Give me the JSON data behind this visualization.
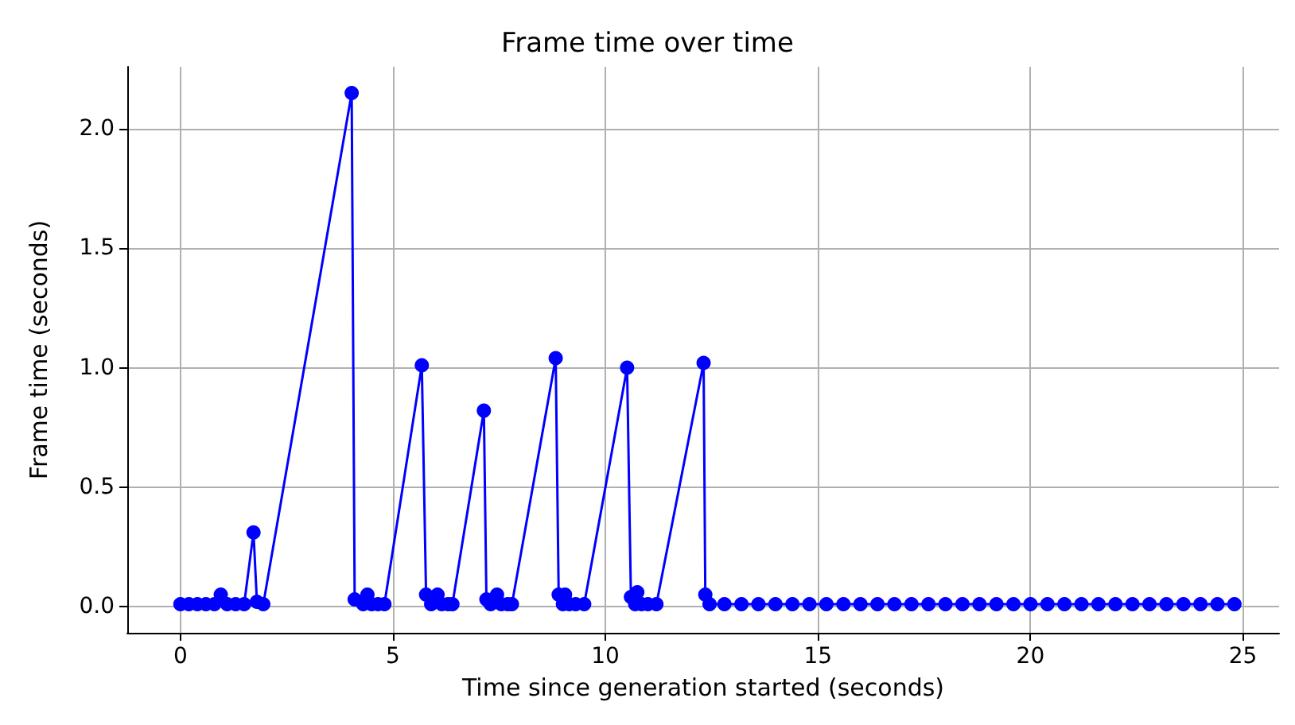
{
  "chart_data": {
    "type": "line",
    "title": "Frame time over time",
    "xlabel": "Time since generation started (seconds)",
    "ylabel": "Frame time (seconds)",
    "x": [
      0,
      0.2,
      0.4,
      0.6,
      0.8,
      0.95,
      1.1,
      1.3,
      1.5,
      1.72,
      1.8,
      1.95,
      4.03,
      4.1,
      4.3,
      4.4,
      4.5,
      4.65,
      4.8,
      5.68,
      5.78,
      5.9,
      6.05,
      6.15,
      6.3,
      6.4,
      7.14,
      7.2,
      7.3,
      7.45,
      7.55,
      7.7,
      7.8,
      8.83,
      8.9,
      9.0,
      9.05,
      9.15,
      9.3,
      9.5,
      10.51,
      10.6,
      10.7,
      10.75,
      10.85,
      11.0,
      11.2,
      12.31,
      12.35,
      12.45,
      12.8,
      13.2,
      13.6,
      14.0,
      14.4,
      14.8,
      15.2,
      15.6,
      16.0,
      16.4,
      16.8,
      17.2,
      17.6,
      18.0,
      18.4,
      18.8,
      19.2,
      19.6,
      20.0,
      20.4,
      20.8,
      21.2,
      21.6,
      22.0,
      22.4,
      22.8,
      23.2,
      23.6,
      24.0,
      24.4,
      24.8
    ],
    "series": [
      {
        "color": "#0000ff",
        "values": [
          0.01,
          0.01,
          0.01,
          0.01,
          0.01,
          0.05,
          0.01,
          0.01,
          0.01,
          0.31,
          0.02,
          0.01,
          2.15,
          0.03,
          0.01,
          0.05,
          0.01,
          0.01,
          0.01,
          1.01,
          0.05,
          0.01,
          0.05,
          0.01,
          0.01,
          0.01,
          0.82,
          0.03,
          0.01,
          0.05,
          0.01,
          0.01,
          0.01,
          1.04,
          0.05,
          0.01,
          0.05,
          0.01,
          0.01,
          0.01,
          1.0,
          0.04,
          0.01,
          0.06,
          0.01,
          0.01,
          0.01,
          1.02,
          0.05,
          0.01,
          0.01,
          0.01,
          0.01,
          0.01,
          0.01,
          0.01,
          0.01,
          0.01,
          0.01,
          0.01,
          0.01,
          0.01,
          0.01,
          0.01,
          0.01,
          0.01,
          0.01,
          0.01,
          0.01,
          0.01,
          0.01,
          0.01,
          0.01,
          0.01,
          0.01,
          0.01,
          0.01,
          0.01,
          0.01,
          0.01,
          0.01
        ]
      }
    ],
    "xlim": [
      -1.25,
      25.85
    ],
    "xticks": [
      0,
      5,
      10,
      15,
      20,
      25
    ],
    "ylim": [
      -0.11,
      2.26
    ],
    "yticks": [
      {
        "value": 0,
        "label": "0.0"
      },
      {
        "value": 0.5,
        "label": "0.5"
      },
      {
        "value": 1,
        "label": "1.0"
      },
      {
        "value": 1.5,
        "label": "1.5"
      },
      {
        "value": 2,
        "label": "2.0"
      }
    ],
    "grid": true,
    "marker": "circle"
  }
}
